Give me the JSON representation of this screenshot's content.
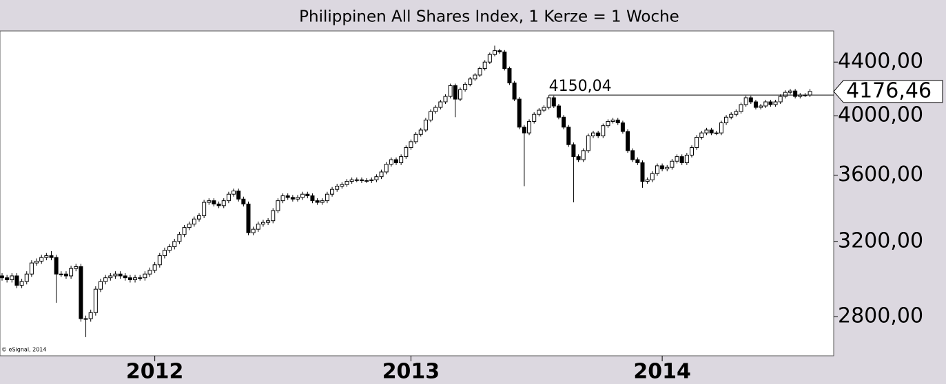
{
  "chart_data": {
    "type": "candlestick",
    "title": "Philippinen All Shares Index, 1 Kerze = 1 Woche",
    "source": "© eSignal, 2014",
    "log_scale": true,
    "ylim": [
      2612,
      4650
    ],
    "yticks": [
      {
        "value": 2800,
        "label": "2800,00"
      },
      {
        "value": 3200,
        "label": "3200,00"
      },
      {
        "value": 3600,
        "label": "3600,00"
      },
      {
        "value": 4000,
        "label": "4000,00"
      },
      {
        "value": 4400,
        "label": "4400,00"
      }
    ],
    "up_color": "#ffffff",
    "down_color": "#000000",
    "annotation": {
      "value": 4150.04,
      "label": "4150,04",
      "index": 111
    },
    "last": {
      "value": 4176.46,
      "label": "4176,46"
    },
    "categories": [
      null,
      null,
      null,
      null,
      null,
      null,
      null,
      null,
      null,
      null,
      null,
      null,
      null,
      null,
      null,
      null,
      null,
      null,
      null,
      null,
      null,
      null,
      null,
      null,
      null,
      null,
      null,
      null,
      null,
      null,
      null,
      "2012",
      null,
      null,
      null,
      null,
      null,
      null,
      null,
      null,
      null,
      null,
      null,
      null,
      null,
      null,
      null,
      null,
      null,
      null,
      null,
      null,
      null,
      null,
      null,
      null,
      null,
      null,
      null,
      null,
      null,
      null,
      null,
      null,
      null,
      null,
      null,
      null,
      null,
      null,
      null,
      null,
      null,
      null,
      null,
      null,
      null,
      null,
      null,
      null,
      null,
      null,
      null,
      "2013",
      null,
      null,
      null,
      null,
      null,
      null,
      null,
      null,
      null,
      null,
      null,
      null,
      null,
      null,
      null,
      null,
      null,
      null,
      null,
      null,
      null,
      null,
      null,
      null,
      null,
      null,
      null,
      null,
      null,
      null,
      null,
      null,
      null,
      null,
      null,
      null,
      null,
      null,
      null,
      null,
      null,
      null,
      null,
      null,
      null,
      null,
      null,
      null,
      null,
      null,
      "2014",
      null,
      null,
      null,
      null,
      null,
      null,
      null,
      null,
      null,
      null,
      null,
      null,
      null,
      null,
      null,
      null,
      null,
      null,
      null,
      null,
      null,
      null,
      null,
      null,
      null,
      null,
      null,
      null,
      null,
      null
    ],
    "open": [
      3010,
      3000,
      2990,
      3010,
      2960,
      2980,
      3020,
      3080,
      3090,
      3110,
      3120,
      3110,
      3020,
      3020,
      3010,
      3050,
      3060,
      2790,
      2790,
      2820,
      2940,
      2980,
      3000,
      3010,
      3020,
      3010,
      3000,
      2990,
      3000,
      3000,
      3020,
      3040,
      3070,
      3120,
      3150,
      3170,
      3200,
      3240,
      3280,
      3300,
      3330,
      3350,
      3430,
      3440,
      3420,
      3410,
      3440,
      3480,
      3500,
      3450,
      3420,
      3250,
      3270,
      3300,
      3310,
      3320,
      3380,
      3440,
      3470,
      3460,
      3450,
      3460,
      3480,
      3470,
      3440,
      3430,
      3440,
      3480,
      3510,
      3530,
      3540,
      3560,
      3570,
      3570,
      3565,
      3565,
      3570,
      3590,
      3620,
      3670,
      3700,
      3680,
      3720,
      3780,
      3820,
      3870,
      3900,
      3970,
      4030,
      4060,
      4100,
      4140,
      4220,
      4120,
      4190,
      4230,
      4270,
      4300,
      4350,
      4400,
      4460,
      4490,
      4480,
      4350,
      4240,
      4120,
      3920,
      3880,
      3960,
      4010,
      4040,
      4060,
      4130,
      4070,
      3990,
      3920,
      3800,
      3720,
      3700,
      3760,
      3860,
      3880,
      3860,
      3930,
      3960,
      3970,
      3950,
      3890,
      3760,
      3700,
      3680,
      3560,
      3570,
      3610,
      3660,
      3640,
      3650,
      3690,
      3720,
      3680,
      3730,
      3780,
      3850,
      3880,
      3900,
      3880,
      3880,
      3950,
      3990,
      4010,
      4030,
      4080,
      4130,
      4100,
      4060,
      4070,
      4100,
      4080,
      4100,
      4140,
      4170,
      4180,
      4140,
      4150,
      4150
    ],
    "high": [
      3025,
      3015,
      3025,
      3025,
      2995,
      3035,
      3095,
      3105,
      3125,
      3135,
      3145,
      3125,
      3035,
      3035,
      3065,
      3075,
      3075,
      2805,
      2835,
      2955,
      2995,
      3015,
      3025,
      3035,
      3035,
      3025,
      3015,
      3015,
      3015,
      3035,
      3055,
      3085,
      3135,
      3165,
      3185,
      3215,
      3255,
      3295,
      3315,
      3345,
      3365,
      3445,
      3455,
      3455,
      3435,
      3455,
      3495,
      3515,
      3515,
      3465,
      3435,
      3285,
      3315,
      3325,
      3335,
      3395,
      3455,
      3485,
      3485,
      3475,
      3475,
      3495,
      3495,
      3485,
      3455,
      3455,
      3495,
      3525,
      3545,
      3555,
      3575,
      3585,
      3585,
      3585,
      3580,
      3585,
      3605,
      3635,
      3685,
      3715,
      3715,
      3735,
      3795,
      3835,
      3885,
      3915,
      3985,
      4045,
      4075,
      4115,
      4155,
      4235,
      4235,
      4205,
      4245,
      4285,
      4315,
      4365,
      4415,
      4475,
      4530,
      4505,
      4495,
      4365,
      4255,
      4135,
      3935,
      3975,
      4025,
      4055,
      4075,
      4150.04,
      4145,
      4085,
      4005,
      3935,
      3815,
      3735,
      3775,
      3875,
      3895,
      3895,
      3945,
      3975,
      3985,
      3985,
      3965,
      3905,
      3775,
      3715,
      3695,
      3585,
      3625,
      3675,
      3675,
      3665,
      3705,
      3735,
      3735,
      3745,
      3795,
      3865,
      3895,
      3915,
      3915,
      3895,
      3965,
      4005,
      4025,
      4045,
      4095,
      4145,
      4145,
      4115,
      4085,
      4115,
      4115,
      4115,
      4155,
      4185,
      4195,
      4195,
      4165,
      4165,
      4195
    ],
    "low": [
      2985,
      2975,
      2975,
      2945,
      2945,
      2965,
      3005,
      3065,
      3075,
      3095,
      3095,
      2870,
      3005,
      2995,
      2995,
      3035,
      2775,
      2700,
      2775,
      2805,
      2925,
      2965,
      2985,
      2995,
      2995,
      2985,
      2975,
      2975,
      2985,
      2985,
      3005,
      3025,
      3055,
      3105,
      3135,
      3155,
      3185,
      3225,
      3265,
      3285,
      3315,
      3335,
      3415,
      3405,
      3395,
      3395,
      3425,
      3465,
      3435,
      3405,
      3235,
      3235,
      3255,
      3285,
      3295,
      3305,
      3365,
      3425,
      3445,
      3435,
      3435,
      3445,
      3455,
      3425,
      3415,
      3415,
      3425,
      3465,
      3495,
      3515,
      3525,
      3545,
      3555,
      3550,
      3550,
      3550,
      3555,
      3575,
      3605,
      3655,
      3665,
      3665,
      3705,
      3765,
      3805,
      3855,
      3885,
      3955,
      4015,
      4045,
      4085,
      4125,
      3990,
      4105,
      4175,
      4215,
      4255,
      4285,
      4335,
      4385,
      4445,
      4465,
      4335,
      4225,
      4105,
      3905,
      3530,
      3865,
      3945,
      3995,
      4025,
      4045,
      4055,
      3975,
      3905,
      3785,
      3430,
      3685,
      3685,
      3745,
      3845,
      3845,
      3845,
      3915,
      3945,
      3935,
      3875,
      3745,
      3685,
      3665,
      3520,
      3545,
      3555,
      3595,
      3625,
      3625,
      3635,
      3675,
      3665,
      3665,
      3715,
      3765,
      3835,
      3865,
      3865,
      3865,
      3865,
      3935,
      3975,
      3995,
      4015,
      4065,
      4085,
      4045,
      4045,
      4055,
      4065,
      4065,
      4085,
      4125,
      4155,
      4125,
      4125,
      4135,
      4135
    ],
    "close": [
      3000,
      2990,
      3010,
      2960,
      2980,
      3020,
      3080,
      3090,
      3110,
      3120,
      3110,
      3020,
      3020,
      3010,
      3050,
      3060,
      2790,
      2790,
      2820,
      2940,
      2980,
      3000,
      3010,
      3020,
      3010,
      3000,
      2990,
      3000,
      3000,
      3020,
      3040,
      3070,
      3120,
      3150,
      3170,
      3200,
      3240,
      3280,
      3300,
      3330,
      3350,
      3430,
      3440,
      3420,
      3410,
      3440,
      3480,
      3500,
      3450,
      3420,
      3250,
      3270,
      3300,
      3310,
      3320,
      3380,
      3440,
      3470,
      3460,
      3450,
      3460,
      3480,
      3470,
      3440,
      3430,
      3440,
      3480,
      3510,
      3530,
      3540,
      3560,
      3570,
      3570,
      3565,
      3565,
      3570,
      3590,
      3620,
      3670,
      3700,
      3680,
      3720,
      3780,
      3820,
      3870,
      3900,
      3970,
      4030,
      4060,
      4100,
      4140,
      4220,
      4120,
      4190,
      4230,
      4270,
      4300,
      4350,
      4400,
      4460,
      4490,
      4480,
      4350,
      4240,
      4120,
      3920,
      3880,
      3960,
      4010,
      4040,
      4060,
      4130,
      4070,
      3990,
      3920,
      3800,
      3720,
      3700,
      3760,
      3860,
      3880,
      3860,
      3930,
      3960,
      3970,
      3950,
      3890,
      3760,
      3700,
      3680,
      3560,
      3570,
      3610,
      3660,
      3640,
      3650,
      3690,
      3720,
      3680,
      3730,
      3780,
      3850,
      3880,
      3900,
      3880,
      3880,
      3950,
      3990,
      4010,
      4030,
      4080,
      4130,
      4100,
      4060,
      4070,
      4100,
      4080,
      4100,
      4140,
      4170,
      4180,
      4140,
      4150,
      4150,
      4176.46
    ]
  }
}
